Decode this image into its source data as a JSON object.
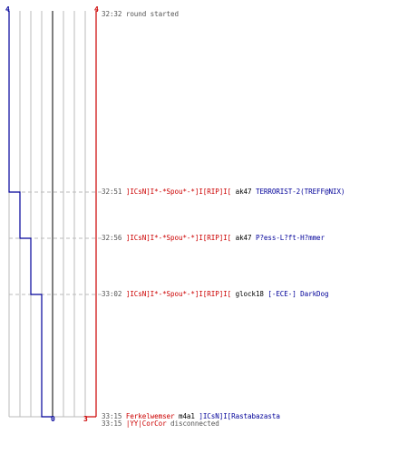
{
  "scores": {
    "top_left": "4",
    "top_right": "4",
    "bottom_mid": "0",
    "bottom_right": "3"
  },
  "colors": {
    "team_red": "#cc0000",
    "team_blue": "#000099",
    "grid": "#bbbbbb",
    "center_axis": "#555555",
    "dashed_guide": "#bbbbbb"
  },
  "chart_data": {
    "type": "line",
    "series": [
      {
        "values": [
          4,
          4,
          4,
          4,
          4
        ]
      },
      {
        "values": [
          4,
          3,
          2,
          1,
          0
        ]
      }
    ]
  },
  "log": [
    {
      "time": "32:32",
      "segments": [
        {
          "text": "round started",
          "style": "gray"
        }
      ]
    },
    {
      "time": "32:51",
      "segments": [
        {
          "text": "]ICsN]I*-*Spou*-*]I[RIP]I[",
          "style": "red"
        },
        {
          "text": " ak47 ",
          "style": "dark"
        },
        {
          "text": "TERRORIST-2(TREFF@NIX)",
          "style": "blue"
        }
      ]
    },
    {
      "time": "32:56",
      "segments": [
        {
          "text": "]ICsN]I*-*Spou*-*]I[RIP]I[",
          "style": "red"
        },
        {
          "text": " ak47 ",
          "style": "dark"
        },
        {
          "text": "P?ess-L?ft-H?mmer",
          "style": "blue"
        }
      ]
    },
    {
      "time": "33:02",
      "segments": [
        {
          "text": "]ICsN]I*-*Spou*-*]I[RIP]I[",
          "style": "red"
        },
        {
          "text": " glock18 ",
          "style": "dark"
        },
        {
          "text": "[-ECE-] DarkDog",
          "style": "blue"
        }
      ]
    },
    {
      "time": "33:15",
      "segments": [
        {
          "text": "Ferkelwemser",
          "style": "red"
        },
        {
          "text": " m4a1 ",
          "style": "dark"
        },
        {
          "text": "]ICsN]I[Rastabazasta",
          "style": "blue"
        }
      ]
    },
    {
      "time": "33:15",
      "segments": [
        {
          "text": "|YY|CorCor",
          "style": "red"
        },
        {
          "text": " disconnected",
          "style": "gray"
        }
      ]
    }
  ]
}
